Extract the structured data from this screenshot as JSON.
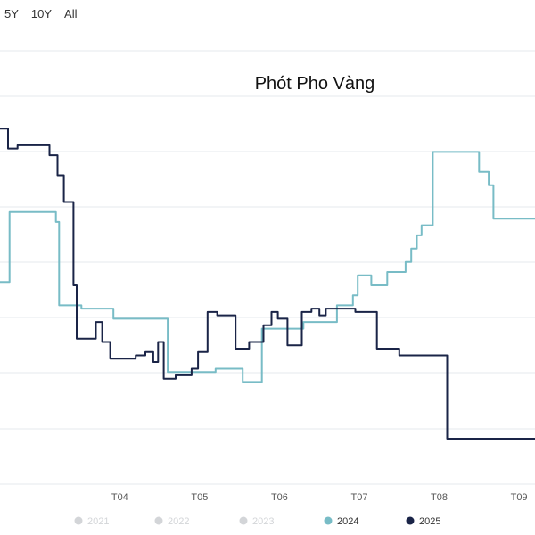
{
  "range_buttons": [
    "5Y",
    "10Y",
    "All"
  ],
  "colors": {
    "s2024": "#78bcc6",
    "s2025": "#1a2447",
    "grid": "#e5e8ec",
    "inactive": "#d3d5d8"
  },
  "chart_data": {
    "type": "line",
    "title": "Phót Pho Vàng",
    "xlabel": "",
    "ylabel": "",
    "x_ticks": [
      "T04",
      "T05",
      "T06",
      "T07",
      "T08",
      "T09"
    ],
    "x_range": [
      2.5,
      9.2
    ],
    "ylim": [
      0,
      100
    ],
    "grid": "horizontal",
    "legend_position": "bottom",
    "legend": [
      {
        "name": "2021",
        "active": false
      },
      {
        "name": "2022",
        "active": false
      },
      {
        "name": "2023",
        "active": false
      },
      {
        "name": "2024",
        "active": true
      },
      {
        "name": "2025",
        "active": true
      }
    ],
    "series": [
      {
        "name": "2024",
        "points": [
          [
            2.5,
            47
          ],
          [
            2.62,
            47
          ],
          [
            2.62,
            68
          ],
          [
            3.2,
            68
          ],
          [
            3.2,
            65
          ],
          [
            3.24,
            65
          ],
          [
            3.24,
            40
          ],
          [
            3.52,
            40
          ],
          [
            3.52,
            39
          ],
          [
            3.92,
            39
          ],
          [
            3.92,
            36
          ],
          [
            4.6,
            36
          ],
          [
            4.6,
            20
          ],
          [
            5.2,
            20
          ],
          [
            5.2,
            21
          ],
          [
            5.54,
            21
          ],
          [
            5.54,
            17
          ],
          [
            5.78,
            17
          ],
          [
            5.78,
            33
          ],
          [
            6.3,
            33
          ],
          [
            6.3,
            35
          ],
          [
            6.72,
            35
          ],
          [
            6.72,
            40
          ],
          [
            6.92,
            40
          ],
          [
            6.92,
            43
          ],
          [
            6.98,
            43
          ],
          [
            6.98,
            49
          ],
          [
            7.15,
            49
          ],
          [
            7.15,
            46
          ],
          [
            7.35,
            46
          ],
          [
            7.35,
            50
          ],
          [
            7.58,
            50
          ],
          [
            7.58,
            53
          ],
          [
            7.65,
            53
          ],
          [
            7.65,
            57
          ],
          [
            7.72,
            57
          ],
          [
            7.72,
            61
          ],
          [
            7.78,
            61
          ],
          [
            7.78,
            64
          ],
          [
            7.92,
            64
          ],
          [
            7.92,
            86
          ],
          [
            8.5,
            86
          ],
          [
            8.5,
            80
          ],
          [
            8.62,
            80
          ],
          [
            8.62,
            76
          ],
          [
            8.68,
            76
          ],
          [
            8.68,
            66
          ],
          [
            9.2,
            66
          ]
        ]
      },
      {
        "name": "2025",
        "points": [
          [
            2.5,
            93
          ],
          [
            2.6,
            93
          ],
          [
            2.6,
            87
          ],
          [
            2.72,
            87
          ],
          [
            2.72,
            88
          ],
          [
            3.12,
            88
          ],
          [
            3.12,
            85
          ],
          [
            3.22,
            85
          ],
          [
            3.22,
            79
          ],
          [
            3.3,
            79
          ],
          [
            3.3,
            71
          ],
          [
            3.42,
            71
          ],
          [
            3.42,
            46
          ],
          [
            3.46,
            46
          ],
          [
            3.46,
            30
          ],
          [
            3.7,
            30
          ],
          [
            3.7,
            35
          ],
          [
            3.78,
            35
          ],
          [
            3.78,
            29
          ],
          [
            3.88,
            29
          ],
          [
            3.88,
            24
          ],
          [
            4.2,
            24
          ],
          [
            4.2,
            25
          ],
          [
            4.32,
            25
          ],
          [
            4.32,
            26
          ],
          [
            4.42,
            26
          ],
          [
            4.42,
            23
          ],
          [
            4.48,
            23
          ],
          [
            4.48,
            29
          ],
          [
            4.55,
            29
          ],
          [
            4.55,
            18
          ],
          [
            4.7,
            18
          ],
          [
            4.7,
            19
          ],
          [
            4.9,
            19
          ],
          [
            4.9,
            21
          ],
          [
            4.98,
            21
          ],
          [
            4.98,
            26
          ],
          [
            5.1,
            26
          ],
          [
            5.1,
            38
          ],
          [
            5.22,
            38
          ],
          [
            5.22,
            37
          ],
          [
            5.45,
            37
          ],
          [
            5.45,
            27
          ],
          [
            5.62,
            27
          ],
          [
            5.62,
            29
          ],
          [
            5.8,
            29
          ],
          [
            5.8,
            34
          ],
          [
            5.9,
            34
          ],
          [
            5.9,
            38
          ],
          [
            5.98,
            38
          ],
          [
            5.98,
            36
          ],
          [
            6.1,
            36
          ],
          [
            6.1,
            28
          ],
          [
            6.28,
            28
          ],
          [
            6.28,
            38
          ],
          [
            6.4,
            38
          ],
          [
            6.4,
            39
          ],
          [
            6.5,
            39
          ],
          [
            6.5,
            37
          ],
          [
            6.58,
            37
          ],
          [
            6.58,
            39
          ],
          [
            6.95,
            39
          ],
          [
            6.95,
            38
          ],
          [
            7.22,
            38
          ],
          [
            7.22,
            27
          ],
          [
            7.5,
            27
          ],
          [
            7.5,
            25
          ],
          [
            8.1,
            25
          ],
          [
            8.1,
            0
          ],
          [
            9.2,
            0
          ]
        ]
      }
    ]
  }
}
